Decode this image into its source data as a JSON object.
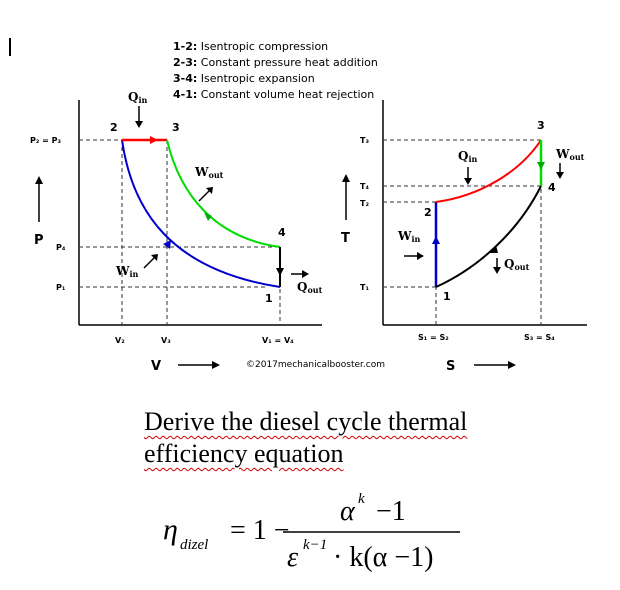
{
  "legend": [
    {
      "step": "1-2:",
      "text": "Isentropic compression"
    },
    {
      "step": "2-3:",
      "text": "Constant pressure heat addition"
    },
    {
      "step": "3-4:",
      "text": "Isentropic expansion"
    },
    {
      "step": "4-1:",
      "text": "Constant volume heat rejection"
    }
  ],
  "pv": {
    "y_axis": "P",
    "x_axis": "V",
    "p_ticks": [
      "P₂ = P₃",
      "P₄",
      "P₁"
    ],
    "v_ticks": [
      "V₂",
      "V₃",
      "V₁ = V₄"
    ],
    "points": [
      "1",
      "2",
      "3",
      "4"
    ],
    "q_in": "Q",
    "q_in_sub": "in",
    "q_out": "Q",
    "q_out_sub": "out",
    "w_out": "W",
    "w_out_sub": "out",
    "w_in": "W",
    "w_in_sub": "in"
  },
  "ts": {
    "y_axis": "T",
    "x_axis": "S",
    "t_ticks": [
      "T₃",
      "T₄",
      "T₂",
      "T₁"
    ],
    "s_ticks": [
      "S₁ = S₂",
      "S₃ = S₄"
    ],
    "points": [
      "1",
      "2",
      "3",
      "4"
    ],
    "q_in": "Q",
    "q_in_sub": "in",
    "q_out": "Q",
    "q_out_sub": "out",
    "w_out": "W",
    "w_out_sub": "out",
    "w_in": "W",
    "w_in_sub": "in"
  },
  "copyright": "©2017mechanicalbooster.com",
  "task": {
    "line1": "Derive the diesel cycle thermal",
    "line2": "efficiency equation"
  },
  "formula": {
    "eta": "η",
    "eta_sub": "dizel",
    "equals_one_minus": "= 1 −",
    "numerator_base": "α",
    "numerator_exp": "k",
    "numerator_rest": "−1",
    "denominator_base": "ε",
    "denominator_exp": "k−1",
    "denominator_rest": "· k(α −1)"
  },
  "colors": {
    "heat_addition": "#ff0000",
    "expansion": "#00dd00",
    "compression": "#0000cc",
    "rejection": "#000000"
  }
}
